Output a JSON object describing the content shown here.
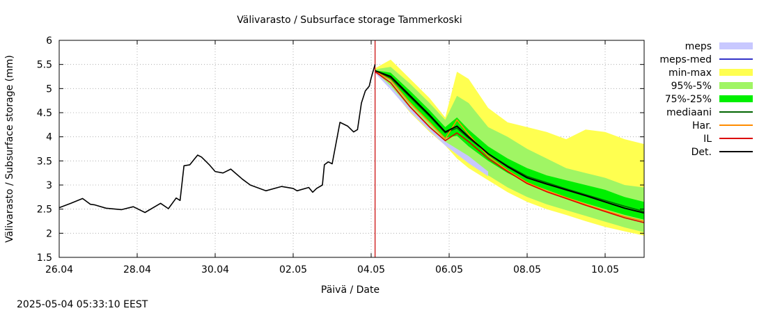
{
  "timestamp": "2025-05-04 05:33:10 EEST",
  "chart_data": {
    "type": "line",
    "title": "Välivarasto / Subsurface storage  Tammerkoski",
    "xlabel": "Päivä / Date",
    "ylabel": "Välivarasto / Subsurface storage (mm)",
    "xlim": [
      0,
      15
    ],
    "ylim": [
      1.5,
      6
    ],
    "x_ticks": [
      {
        "x": 0,
        "label": "26.04"
      },
      {
        "x": 2,
        "label": "28.04"
      },
      {
        "x": 4,
        "label": "30.04"
      },
      {
        "x": 6,
        "label": "02.05"
      },
      {
        "x": 8,
        "label": "04.05"
      },
      {
        "x": 10,
        "label": "06.05"
      },
      {
        "x": 12,
        "label": "08.05"
      },
      {
        "x": 14,
        "label": "10.05"
      }
    ],
    "y_ticks": [
      1.5,
      2,
      2.5,
      3,
      3.5,
      4,
      4.5,
      5,
      5.5,
      6
    ],
    "y_tick_labels": [
      "1.5",
      "2",
      "2.5",
      "3",
      "3.5",
      "4",
      "4.5",
      "5",
      "5.5",
      "6"
    ],
    "grid": true,
    "legend_position": "right",
    "forecast_start_x": 8.1,
    "colors": {
      "meps": "#c8c8ff",
      "meps_med": "#3232c8",
      "minmax": "#ffff50",
      "p95_5": "#a0f564",
      "p75_25": "#00f000",
      "mediaani": "#006400",
      "har": "#ff8c00",
      "il": "#dc0000",
      "det": "#000000",
      "vline": "#c80000"
    },
    "legend": [
      {
        "key": "meps",
        "label": "meps",
        "style": "band"
      },
      {
        "key": "meps_med",
        "label": "meps-med",
        "style": "line"
      },
      {
        "key": "minmax",
        "label": "min-max",
        "style": "band"
      },
      {
        "key": "p95_5",
        "label": "95%-5%",
        "style": "band"
      },
      {
        "key": "p75_25",
        "label": "75%-25%",
        "style": "band"
      },
      {
        "key": "mediaani",
        "label": "mediaani",
        "style": "line"
      },
      {
        "key": "har",
        "label": "Har.",
        "style": "line"
      },
      {
        "key": "il",
        "label": "IL",
        "style": "line"
      },
      {
        "key": "det",
        "label": "Det.",
        "style": "line"
      }
    ],
    "series": {
      "observed": {
        "x": [
          0,
          0.3,
          0.6,
          0.8,
          0.9,
          1.2,
          1.6,
          1.9,
          2.2,
          2.6,
          2.8,
          3.0,
          3.1,
          3.2,
          3.35,
          3.45,
          3.55,
          3.65,
          3.75,
          3.85,
          4.0,
          4.2,
          4.4,
          4.7,
          4.9,
          5.3,
          5.7,
          6.0,
          6.1,
          6.4,
          6.5,
          6.6,
          6.75,
          6.8,
          6.9,
          7.0,
          7.2,
          7.4,
          7.55,
          7.65,
          7.75,
          7.85,
          7.95,
          8.0,
          8.1
        ],
        "y": [
          2.53,
          2.62,
          2.72,
          2.6,
          2.59,
          2.52,
          2.49,
          2.55,
          2.43,
          2.62,
          2.51,
          2.73,
          2.68,
          3.4,
          3.42,
          3.52,
          3.62,
          3.58,
          3.5,
          3.42,
          3.28,
          3.25,
          3.33,
          3.12,
          3.0,
          2.88,
          2.97,
          2.93,
          2.88,
          2.95,
          2.85,
          2.93,
          3.0,
          3.42,
          3.48,
          3.44,
          4.3,
          4.22,
          4.1,
          4.15,
          4.7,
          4.95,
          5.05,
          5.22,
          5.5
        ]
      },
      "forecast_x": [
        8.1,
        8.5,
        9.0,
        9.5,
        9.9,
        10.2,
        10.5,
        11.0,
        11.5,
        12.0,
        12.5,
        13.0,
        13.5,
        14.0,
        14.5,
        15.0
      ],
      "minmax_hi": [
        5.42,
        5.6,
        5.2,
        4.8,
        4.4,
        5.35,
        5.2,
        4.6,
        4.3,
        4.2,
        4.1,
        3.95,
        4.15,
        4.1,
        3.95,
        3.85
      ],
      "minmax_lo": [
        5.32,
        5.0,
        4.5,
        4.1,
        3.82,
        3.55,
        3.35,
        3.1,
        2.85,
        2.65,
        2.5,
        2.38,
        2.25,
        2.13,
        2.04,
        1.95
      ],
      "p95_hi": [
        5.4,
        5.45,
        5.1,
        4.7,
        4.35,
        4.85,
        4.7,
        4.2,
        4.0,
        3.75,
        3.55,
        3.35,
        3.25,
        3.15,
        3.0,
        2.95
      ],
      "p95_lo": [
        5.34,
        5.05,
        4.55,
        4.15,
        3.86,
        3.65,
        3.45,
        3.2,
        2.95,
        2.75,
        2.6,
        2.48,
        2.36,
        2.24,
        2.12,
        2.02
      ],
      "p75_hi": [
        5.38,
        5.33,
        4.95,
        4.55,
        4.2,
        4.4,
        4.15,
        3.8,
        3.55,
        3.35,
        3.2,
        3.1,
        3.0,
        2.9,
        2.75,
        2.65
      ],
      "p75_lo": [
        5.35,
        5.18,
        4.72,
        4.3,
        3.98,
        4.02,
        3.8,
        3.5,
        3.25,
        3.05,
        2.9,
        2.75,
        2.62,
        2.5,
        2.38,
        2.28
      ],
      "mediaani": [
        5.37,
        5.22,
        4.82,
        4.42,
        4.08,
        4.18,
        3.97,
        3.65,
        3.4,
        3.18,
        3.05,
        2.92,
        2.8,
        2.68,
        2.56,
        2.45
      ],
      "det": [
        5.37,
        5.25,
        4.85,
        4.45,
        4.1,
        4.22,
        4.0,
        3.65,
        3.38,
        3.15,
        3.02,
        2.9,
        2.78,
        2.65,
        2.52,
        2.42
      ],
      "har": [
        5.36,
        5.18,
        4.7,
        4.3,
        3.96,
        4.35,
        4.05,
        3.6,
        3.3,
        3.05,
        2.88,
        2.74,
        2.6,
        2.47,
        2.35,
        2.25
      ],
      "il": [
        5.35,
        5.12,
        4.62,
        4.2,
        3.92,
        4.08,
        3.9,
        3.55,
        3.28,
        3.03,
        2.86,
        2.72,
        2.58,
        2.45,
        2.32,
        2.22
      ],
      "meps_x": [
        8.1,
        8.5,
        9.0,
        9.5,
        9.9,
        10.5,
        11.0
      ],
      "meps_hi": [
        5.36,
        5.05,
        4.6,
        4.2,
        3.9,
        3.6,
        3.28
      ],
      "meps_lo": [
        5.32,
        4.98,
        4.52,
        4.12,
        3.82,
        3.45,
        3.18
      ]
    }
  }
}
